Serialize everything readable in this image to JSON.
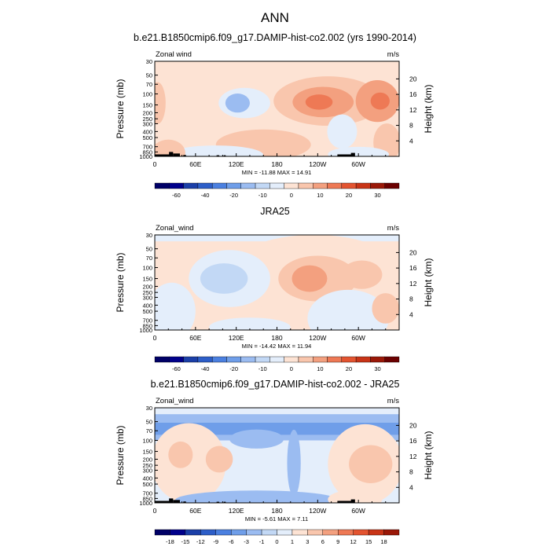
{
  "main_title": "ANN",
  "colors": {
    "scale_a": [
      "#000066",
      "#00008b",
      "#1b3fa8",
      "#2d5ec8",
      "#4b80e0",
      "#6f9ee9",
      "#9bbcf1",
      "#c2d8f5",
      "#e4eefb",
      "#fde3d4",
      "#f9c6ad",
      "#f3a07f",
      "#ee7955",
      "#e35430",
      "#c83417",
      "#9a1808",
      "#6b0000"
    ],
    "scale_b": [
      "#000066",
      "#00008b",
      "#1b3fa8",
      "#2d5ec8",
      "#4b80e0",
      "#6f9ee9",
      "#9bbcf1",
      "#c2d8f5",
      "#e4eefb",
      "#fde3d4",
      "#f9c6ad",
      "#f3a07f",
      "#ee7955",
      "#e35430",
      "#c83417",
      "#9a1808",
      "#6b0000"
    ],
    "topography": "#000000"
  },
  "chart_data": [
    {
      "type": "contour",
      "title": "b.e21.B1850cmip6.f09_g17.DAMIP-hist-co2.002 (yrs 1990-2014)",
      "variable_label": "Zonal wind",
      "units_label": "m/s",
      "ylabel": "Pressure (mb)",
      "ylabel_right": "Height (km)",
      "x_ticks": [
        "0",
        "60E",
        "120E",
        "180",
        "120W",
        "60W"
      ],
      "y_ticks": [
        "30",
        "50",
        "70",
        "100",
        "150",
        "200",
        "250",
        "300",
        "400",
        "500",
        "700",
        "850",
        "1000"
      ],
      "y_ticks_right": [
        "20",
        "16",
        "12",
        "8",
        "4"
      ],
      "stats": "MIN = -11.88  MAX =  14.91",
      "min": -11.88,
      "max": 14.91,
      "colorbar_labels": [
        "-60",
        "-40",
        "-20",
        "-10",
        "0",
        "10",
        "20",
        "30"
      ],
      "features": [
        {
          "type": "ellipse",
          "lon": 165,
          "p": 320,
          "rlon": 160,
          "rp": 0.34,
          "v": 3
        },
        {
          "type": "ellipse",
          "lon": 255,
          "p": 130,
          "rlon": 80,
          "rp": 0.26,
          "v": 6
        },
        {
          "type": "ellipse",
          "lon": 248,
          "p": 135,
          "rlon": 45,
          "rp": 0.16,
          "v": 12
        },
        {
          "type": "ellipse",
          "lon": 328,
          "p": 130,
          "rlon": 32,
          "rp": 0.22,
          "v": 10
        },
        {
          "type": "ellipse",
          "lon": 242,
          "p": 135,
          "rlon": 20,
          "rp": 0.08,
          "v": 15
        },
        {
          "type": "ellipse",
          "lon": 332,
          "p": 130,
          "rlon": 14,
          "rp": 0.09,
          "v": 15
        },
        {
          "type": "ellipse",
          "lon": 132,
          "p": 140,
          "rlon": 38,
          "rp": 0.16,
          "v": -5
        },
        {
          "type": "ellipse",
          "lon": 122,
          "p": 140,
          "rlon": 18,
          "rp": 0.1,
          "v": -11
        },
        {
          "type": "ellipse",
          "lon": 160,
          "p": 650,
          "rlon": 70,
          "rp": 0.16,
          "v": 5
        },
        {
          "type": "ellipse",
          "lon": 4,
          "p": 140,
          "rlon": 12,
          "rp": 0.22,
          "v": 5
        },
        {
          "type": "ellipse",
          "lon": 342,
          "p": 600,
          "rlon": 20,
          "rp": 0.2,
          "v": 5
        },
        {
          "type": "ellipse",
          "lon": 276,
          "p": 400,
          "rlon": 22,
          "rp": 0.18,
          "v": -2
        },
        {
          "type": "ellipse",
          "lon": 90,
          "p": 950,
          "rlon": 70,
          "rp": 0.1,
          "v": -3
        },
        {
          "type": "ellipse",
          "lon": 20,
          "p": 880,
          "rlon": 25,
          "rp": 0.14,
          "v": 5
        },
        {
          "type": "ellipse",
          "lon": 300,
          "p": 930,
          "rlon": 45,
          "rp": 0.08,
          "v": -2
        }
      ],
      "topography": [
        {
          "lon": 10,
          "w": 25,
          "p": 930
        },
        {
          "lon": 24,
          "w": 6,
          "p": 850
        },
        {
          "lon": 32,
          "w": 10,
          "p": 900
        },
        {
          "lon": 44,
          "w": 4,
          "p": 950
        },
        {
          "lon": 93,
          "w": 4,
          "p": 960
        },
        {
          "lon": 103,
          "w": 3,
          "p": 960
        },
        {
          "lon": 281,
          "w": 24,
          "p": 930
        },
        {
          "lon": 292,
          "w": 6,
          "p": 880
        }
      ]
    },
    {
      "type": "contour",
      "title": "JRA25",
      "variable_label": "Zonal_wind",
      "units_label": "m/s",
      "ylabel": "Pressure (mb)",
      "ylabel_right": "Height (km)",
      "x_ticks": [
        "0",
        "60E",
        "120E",
        "180",
        "120W",
        "60W"
      ],
      "y_ticks": [
        "30",
        "50",
        "70",
        "100",
        "150",
        "200",
        "250",
        "300",
        "400",
        "500",
        "700",
        "850",
        "1000"
      ],
      "y_ticks_right": [
        "20",
        "16",
        "12",
        "8",
        "4"
      ],
      "stats": "MIN = -14.42  MAX =  11.94",
      "min": -14.42,
      "max": 11.94,
      "colorbar_labels": [
        "-60",
        "-40",
        "-20",
        "-10",
        "0",
        "10",
        "20",
        "30"
      ],
      "features": [
        {
          "type": "band",
          "pmin": 30,
          "pmax": 38,
          "lon0": 0,
          "lon1": 360,
          "v": -2
        },
        {
          "type": "ellipse",
          "lon": 235,
          "p": 130,
          "rlon": 130,
          "rp": 0.42,
          "v": 4
        },
        {
          "type": "ellipse",
          "lon": 240,
          "p": 150,
          "rlon": 58,
          "rp": 0.24,
          "v": 7
        },
        {
          "type": "ellipse",
          "lon": 305,
          "p": 130,
          "rlon": 30,
          "rp": 0.15,
          "v": 7
        },
        {
          "type": "ellipse",
          "lon": 228,
          "p": 150,
          "rlon": 26,
          "rp": 0.14,
          "v": 12
        },
        {
          "type": "ellipse",
          "lon": 110,
          "p": 150,
          "rlon": 60,
          "rp": 0.3,
          "v": -3
        },
        {
          "type": "ellipse",
          "lon": 102,
          "p": 150,
          "rlon": 35,
          "rp": 0.16,
          "v": -8
        },
        {
          "type": "ellipse",
          "lon": 25,
          "p": 500,
          "rlon": 35,
          "rp": 0.3,
          "v": -2
        },
        {
          "type": "ellipse",
          "lon": 285,
          "p": 650,
          "rlon": 60,
          "rp": 0.3,
          "v": -2
        },
        {
          "type": "ellipse",
          "lon": 90,
          "p": 680,
          "rlon": 30,
          "rp": 0.14,
          "v": 4
        },
        {
          "type": "ellipse",
          "lon": 340,
          "p": 450,
          "rlon": 20,
          "rp": 0.16,
          "v": 5
        },
        {
          "type": "ellipse",
          "lon": 140,
          "p": 900,
          "rlon": 60,
          "rp": 0.1,
          "v": -2
        }
      ],
      "topography": []
    },
    {
      "type": "contour",
      "title": "b.e21.B1850cmip6.f09_g17.DAMIP-hist-co2.002 - JRA25",
      "variable_label": "Zonal_wind",
      "units_label": "m/s",
      "ylabel": "Pressure (mb)",
      "ylabel_right": "Height (km)",
      "x_ticks": [
        "0",
        "60E",
        "120E",
        "180",
        "120W",
        "60W"
      ],
      "y_ticks": [
        "30",
        "50",
        "70",
        "100",
        "150",
        "200",
        "250",
        "300",
        "400",
        "500",
        "700",
        "850",
        "1000"
      ],
      "y_ticks_right": [
        "20",
        "16",
        "12",
        "8",
        "4"
      ],
      "stats": "MIN = -5.61  MAX =  7.11",
      "min": -5.61,
      "max": 7.11,
      "colorbar_labels": [
        "-18",
        "-15",
        "-12",
        "-9",
        "-6",
        "-3",
        "-1",
        "0",
        "1",
        "3",
        "6",
        "9",
        "12",
        "15",
        "18"
      ],
      "features": [
        {
          "type": "band",
          "pmin": 30,
          "pmax": 38,
          "lon0": 0,
          "lon1": 360,
          "v": 0.5
        },
        {
          "type": "band",
          "pmin": 38,
          "pmax": 52,
          "lon0": 0,
          "lon1": 360,
          "v": -2
        },
        {
          "type": "band",
          "pmin": 52,
          "pmax": 82,
          "lon0": 0,
          "lon1": 360,
          "v": -4
        },
        {
          "type": "band",
          "pmin": 82,
          "pmax": 100,
          "lon0": 0,
          "lon1": 360,
          "v": -2
        },
        {
          "type": "band",
          "pmin": 100,
          "pmax": 700,
          "lon0": 0,
          "lon1": 360,
          "v": 0.5
        },
        {
          "type": "ellipse",
          "lon": 150,
          "p": 95,
          "rlon": 40,
          "rp": 0.1,
          "v": -2
        },
        {
          "type": "ellipse",
          "lon": 205,
          "p": 230,
          "rlon": 10,
          "rp": 0.35,
          "v": -2
        },
        {
          "type": "ellipse",
          "lon": 50,
          "p": 230,
          "rlon": 55,
          "rp": 0.42,
          "v": 2
        },
        {
          "type": "ellipse",
          "lon": 38,
          "p": 170,
          "rlon": 18,
          "rp": 0.14,
          "v": 4
        },
        {
          "type": "ellipse",
          "lon": 95,
          "p": 200,
          "rlon": 20,
          "rp": 0.14,
          "v": 4
        },
        {
          "type": "ellipse",
          "lon": 310,
          "p": 240,
          "rlon": 55,
          "rp": 0.42,
          "v": 2
        },
        {
          "type": "ellipse",
          "lon": 318,
          "p": 240,
          "rlon": 32,
          "rp": 0.2,
          "v": 4
        },
        {
          "type": "ellipse",
          "lon": 150,
          "p": 900,
          "rlon": 120,
          "rp": 0.1,
          "v": -2
        },
        {
          "type": "ellipse",
          "lon": 295,
          "p": 880,
          "rlon": 40,
          "rp": 0.1,
          "v": 2
        }
      ],
      "topography": [
        {
          "lon": 10,
          "w": 25,
          "p": 930
        },
        {
          "lon": 24,
          "w": 6,
          "p": 850
        },
        {
          "lon": 32,
          "w": 10,
          "p": 900
        },
        {
          "lon": 44,
          "w": 4,
          "p": 950
        },
        {
          "lon": 93,
          "w": 4,
          "p": 960
        },
        {
          "lon": 103,
          "w": 3,
          "p": 960
        },
        {
          "lon": 281,
          "w": 24,
          "p": 930
        },
        {
          "lon": 292,
          "w": 6,
          "p": 880
        }
      ]
    }
  ]
}
